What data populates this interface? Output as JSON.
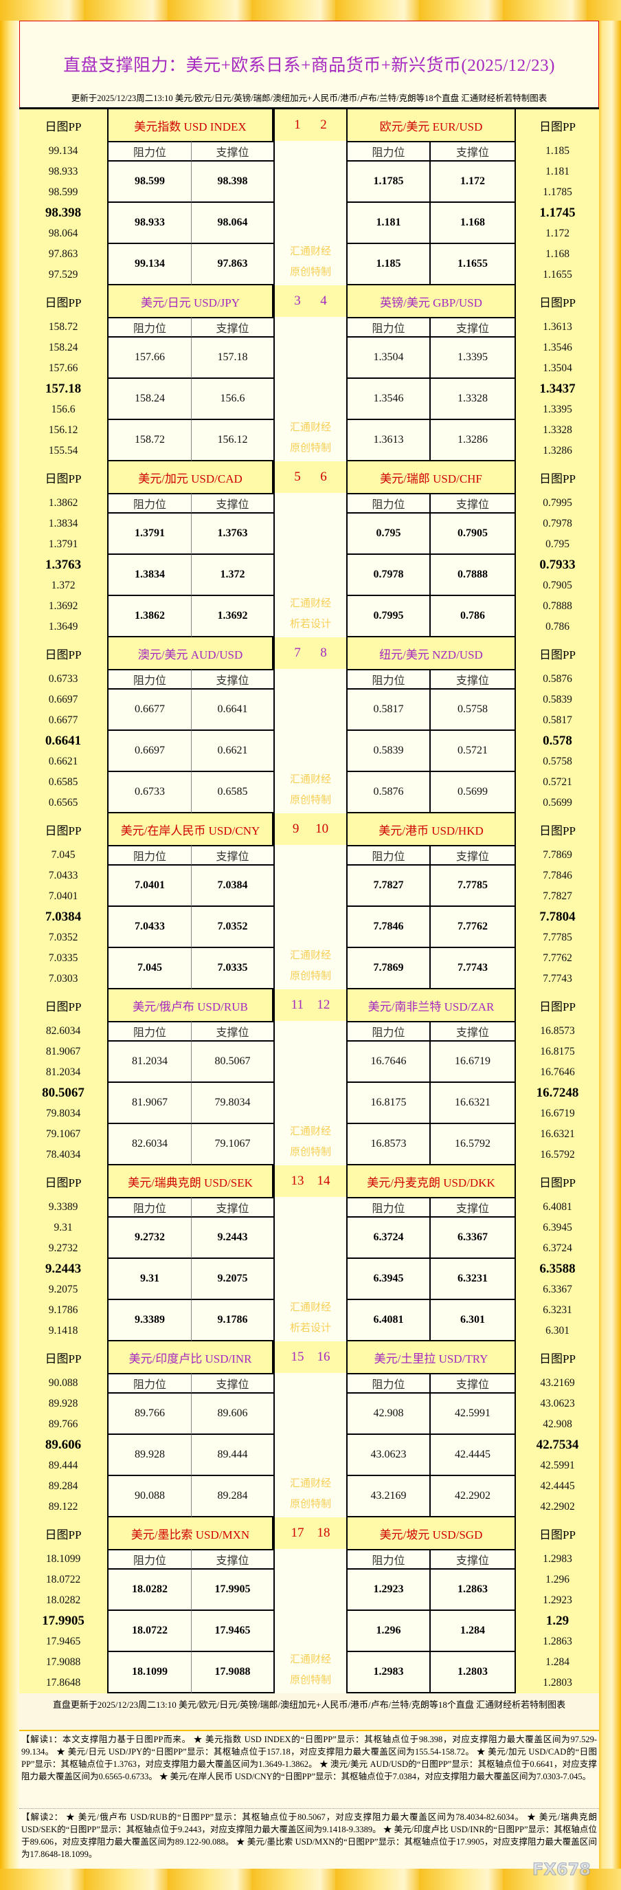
{
  "header": {
    "title": "直盘支撑阻力：美元+欧系日系+商品货币+新兴货币(2025/12/23)",
    "subtitle": "更新于2025/12/23周二13:10 美元/欧元/日元/英镑/瑞郎/澳纽加元+人民币/港币/卢布/兰特/克朗等18个直盘 汇通财经析若特制图表"
  },
  "labels": {
    "pp": "日图PP",
    "resistance": "阻力位",
    "support": "支撑位",
    "wm1": "汇通财经"
  },
  "colors": {
    "red": "#d00000",
    "purple": "#a528c0",
    "gold": "#f7c21a",
    "watermark": "#f7cf55"
  },
  "blocks": [
    {
      "style": "red",
      "wm2": "原创特制",
      "left": {
        "num": "1",
        "title": "美元指数 USD INDEX",
        "pp": [
          "99.134",
          "98.933",
          "98.599",
          "98.398",
          "98.064",
          "97.863",
          "97.529"
        ],
        "res": [
          "98.599",
          "98.933",
          "99.134"
        ],
        "sup": [
          "98.398",
          "98.064",
          "97.863"
        ]
      },
      "right": {
        "num": "2",
        "title": "欧元/美元 EUR/USD",
        "pp": [
          "1.185",
          "1.181",
          "1.1785",
          "1.1745",
          "1.172",
          "1.168",
          "1.1655"
        ],
        "res": [
          "1.1785",
          "1.181",
          "1.185"
        ],
        "sup": [
          "1.172",
          "1.168",
          "1.1655"
        ]
      }
    },
    {
      "style": "purple",
      "wm2": "原创特制",
      "left": {
        "num": "3",
        "title": "美元/日元 USD/JPY",
        "pp": [
          "158.72",
          "158.24",
          "157.66",
          "157.18",
          "156.6",
          "156.12",
          "155.54"
        ],
        "res": [
          "157.66",
          "158.24",
          "158.72"
        ],
        "sup": [
          "157.18",
          "156.6",
          "156.12"
        ]
      },
      "right": {
        "num": "4",
        "title": "英镑/美元 GBP/USD",
        "pp": [
          "1.3613",
          "1.3546",
          "1.3504",
          "1.3437",
          "1.3395",
          "1.3328",
          "1.3286"
        ],
        "res": [
          "1.3504",
          "1.3546",
          "1.3613"
        ],
        "sup": [
          "1.3395",
          "1.3328",
          "1.3286"
        ]
      }
    },
    {
      "style": "red",
      "wm2": "析若设计",
      "left": {
        "num": "5",
        "title": "美元/加元 USD/CAD",
        "pp": [
          "1.3862",
          "1.3834",
          "1.3791",
          "1.3763",
          "1.372",
          "1.3692",
          "1.3649"
        ],
        "res": [
          "1.3791",
          "1.3834",
          "1.3862"
        ],
        "sup": [
          "1.3763",
          "1.372",
          "1.3692"
        ]
      },
      "right": {
        "num": "6",
        "title": "美元/瑞郎 USD/CHF",
        "pp": [
          "0.7995",
          "0.7978",
          "0.795",
          "0.7933",
          "0.7905",
          "0.7888",
          "0.786"
        ],
        "res": [
          "0.795",
          "0.7978",
          "0.7995"
        ],
        "sup": [
          "0.7905",
          "0.7888",
          "0.786"
        ]
      }
    },
    {
      "style": "purple",
      "wm2": "原创特制",
      "left": {
        "num": "7",
        "title": "澳元/美元 AUD/USD",
        "pp": [
          "0.6733",
          "0.6697",
          "0.6677",
          "0.6641",
          "0.6621",
          "0.6585",
          "0.6565"
        ],
        "res": [
          "0.6677",
          "0.6697",
          "0.6733"
        ],
        "sup": [
          "0.6641",
          "0.6621",
          "0.6585"
        ]
      },
      "right": {
        "num": "8",
        "title": "纽元/美元 NZD/USD",
        "pp": [
          "0.5876",
          "0.5839",
          "0.5817",
          "0.578",
          "0.5758",
          "0.5721",
          "0.5699"
        ],
        "res": [
          "0.5817",
          "0.5839",
          "0.5876"
        ],
        "sup": [
          "0.5758",
          "0.5721",
          "0.5699"
        ]
      }
    },
    {
      "style": "red",
      "wm2": "原创特制",
      "left": {
        "num": "9",
        "title": "美元/在岸人民币 USD/CNY",
        "pp": [
          "7.045",
          "7.0433",
          "7.0401",
          "7.0384",
          "7.0352",
          "7.0335",
          "7.0303"
        ],
        "res": [
          "7.0401",
          "7.0433",
          "7.045"
        ],
        "sup": [
          "7.0384",
          "7.0352",
          "7.0335"
        ]
      },
      "right": {
        "num": "10",
        "title": "美元/港币 USD/HKD",
        "pp": [
          "7.7869",
          "7.7846",
          "7.7827",
          "7.7804",
          "7.7785",
          "7.7762",
          "7.7743"
        ],
        "res": [
          "7.7827",
          "7.7846",
          "7.7869"
        ],
        "sup": [
          "7.7785",
          "7.7762",
          "7.7743"
        ]
      }
    },
    {
      "style": "purple",
      "wm2": "原创特制",
      "left": {
        "num": "11",
        "title": "美元/俄卢布 USD/RUB",
        "pp": [
          "82.6034",
          "81.9067",
          "81.2034",
          "80.5067",
          "79.8034",
          "79.1067",
          "78.4034"
        ],
        "res": [
          "81.2034",
          "81.9067",
          "82.6034"
        ],
        "sup": [
          "80.5067",
          "79.8034",
          "79.1067"
        ]
      },
      "right": {
        "num": "12",
        "title": "美元/南非兰特 USD/ZAR",
        "pp": [
          "16.8573",
          "16.8175",
          "16.7646",
          "16.7248",
          "16.6719",
          "16.6321",
          "16.5792"
        ],
        "res": [
          "16.7646",
          "16.8175",
          "16.8573"
        ],
        "sup": [
          "16.6719",
          "16.6321",
          "16.5792"
        ]
      }
    },
    {
      "style": "red",
      "wm2": "析若设计",
      "left": {
        "num": "13",
        "title": "美元/瑞典克朗 USD/SEK",
        "pp": [
          "9.3389",
          "9.31",
          "9.2732",
          "9.2443",
          "9.2075",
          "9.1786",
          "9.1418"
        ],
        "res": [
          "9.2732",
          "9.31",
          "9.3389"
        ],
        "sup": [
          "9.2443",
          "9.2075",
          "9.1786"
        ]
      },
      "right": {
        "num": "14",
        "title": "美元/丹麦克朗 USD/DKK",
        "pp": [
          "6.4081",
          "6.3945",
          "6.3724",
          "6.3588",
          "6.3367",
          "6.3231",
          "6.301"
        ],
        "res": [
          "6.3724",
          "6.3945",
          "6.4081"
        ],
        "sup": [
          "6.3367",
          "6.3231",
          "6.301"
        ]
      }
    },
    {
      "style": "purple",
      "wm2": "原创特制",
      "left": {
        "num": "15",
        "title": "美元/印度卢比 USD/INR",
        "pp": [
          "90.088",
          "89.928",
          "89.766",
          "89.606",
          "89.444",
          "89.284",
          "89.122"
        ],
        "res": [
          "89.766",
          "89.928",
          "90.088"
        ],
        "sup": [
          "89.606",
          "89.444",
          "89.284"
        ]
      },
      "right": {
        "num": "16",
        "title": "美元/土里拉 USD/TRY",
        "pp": [
          "43.2169",
          "43.0623",
          "42.908",
          "42.7534",
          "42.5991",
          "42.4445",
          "42.2902"
        ],
        "res": [
          "42.908",
          "43.0623",
          "43.2169"
        ],
        "sup": [
          "42.5991",
          "42.4445",
          "42.2902"
        ]
      }
    },
    {
      "style": "red",
      "wm2": "原创特制",
      "left": {
        "num": "17",
        "title": "美元/墨比索 USD/MXN",
        "pp": [
          "18.1099",
          "18.0722",
          "18.0282",
          "17.9905",
          "17.9465",
          "17.9088",
          "17.8648"
        ],
        "res": [
          "18.0282",
          "18.0722",
          "18.1099"
        ],
        "sup": [
          "17.9905",
          "17.9465",
          "17.9088"
        ]
      },
      "right": {
        "num": "18",
        "title": "美元/坡元 USD/SGD",
        "pp": [
          "1.2983",
          "1.296",
          "1.2923",
          "1.29",
          "1.2863",
          "1.284",
          "1.2803"
        ],
        "res": [
          "1.2923",
          "1.296",
          "1.2983"
        ],
        "sup": [
          "1.2863",
          "1.284",
          "1.2803"
        ]
      }
    }
  ],
  "footer": {
    "update": "直盘更新于2025/12/23周二13:10 美元/欧元/日元/英镑/瑞郎/澳纽加元+人民币/港币/卢布/兰特/克朗等18个直盘 汇通财经析若特制图表",
    "explain1": "【解读1：本文支撑阻力基于日图PP而来。 ★ 美元指数 USD INDEX的“日图PP”显示：其枢轴点位于98.398，对应支撑阻力最大覆盖区间为97.529-99.134。 ★ 美元/日元 USD/JPY的“日图PP”显示：其枢轴点位于157.18，对应支撑阻力最大覆盖区间为155.54-158.72。 ★ 美元/加元 USD/CAD的“日图PP”显示：其枢轴点位于1.3763，对应支撑阻力最大覆盖区间为1.3649-1.3862。 ★ 澳元/美元 AUD/USD的“日图PP”显示：其枢轴点位于0.6641，对应支撑阻力最大覆盖区间为0.6565-0.6733。 ★ 美元/在岸人民币 USD/CNY的“日图PP”显示：其枢轴点位于7.0384，对应支撑阻力最大覆盖区间为7.0303-7.045。",
    "explain2": "【解读2： ★ 美元/俄卢布 USD/RUB的“日图PP”显示：其枢轴点位于80.5067，对应支撑阻力最大覆盖区间为78.4034-82.6034。 ★ 美元/瑞典克朗 USD/SEK的“日图PP”显示：其枢轴点位于9.2443，对应支撑阻力最大覆盖区间为9.1418-9.3389。 ★ 美元/印度卢比 USD/INR的“日图PP”显示：其枢轴点位于89.606，对应支撑阻力最大覆盖区间为89.122-90.088。 ★ 美元/墨比索 USD/MXN的“日图PP”显示：其枢轴点位于17.9905，对应支撑阻力最大覆盖区间为17.8648-18.1099。"
  },
  "logo": "FX678"
}
